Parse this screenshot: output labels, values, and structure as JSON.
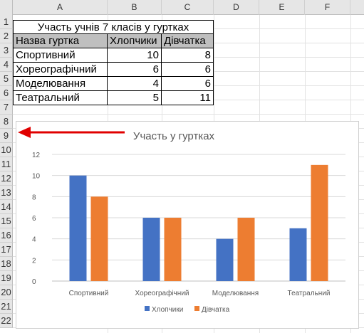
{
  "columns": [
    "A",
    "B",
    "C",
    "D",
    "E",
    "F"
  ],
  "rows": [
    "1",
    "2",
    "3",
    "4",
    "5",
    "6",
    "7",
    "8",
    "9",
    "10",
    "11",
    "12",
    "13",
    "14",
    "15",
    "16",
    "17",
    "18",
    "19",
    "20",
    "21",
    "22"
  ],
  "table": {
    "title": "Участь учнів 7 класів у гуртках",
    "headers": [
      "Назва гуртка",
      "Хлопчики",
      "Дівчатка"
    ],
    "records": [
      {
        "name": "Спортивний",
        "boys": "10",
        "girls": "8"
      },
      {
        "name": "Хореографічний",
        "boys": "6",
        "girls": "6"
      },
      {
        "name": "Моделювання",
        "boys": "4",
        "girls": "6"
      },
      {
        "name": "Театральний",
        "boys": "5",
        "girls": "11"
      }
    ]
  },
  "chart_data": {
    "type": "bar",
    "title": "Участь у гуртках",
    "categories": [
      "Спортивний",
      "Хореографічний",
      "Моделювання",
      "Театральний"
    ],
    "series": [
      {
        "name": "Хлопчики",
        "values": [
          10,
          6,
          4,
          5
        ],
        "color": "#4472c4"
      },
      {
        "name": "Дівчатка",
        "values": [
          8,
          6,
          6,
          11
        ],
        "color": "#ed7d31"
      }
    ],
    "ylim": [
      0,
      12
    ],
    "yticks": [
      "0",
      "2",
      "4",
      "6",
      "8",
      "10",
      "12"
    ],
    "grid": true,
    "legend": "bottom"
  },
  "annotation": {
    "arrow_color": "#e00000"
  }
}
